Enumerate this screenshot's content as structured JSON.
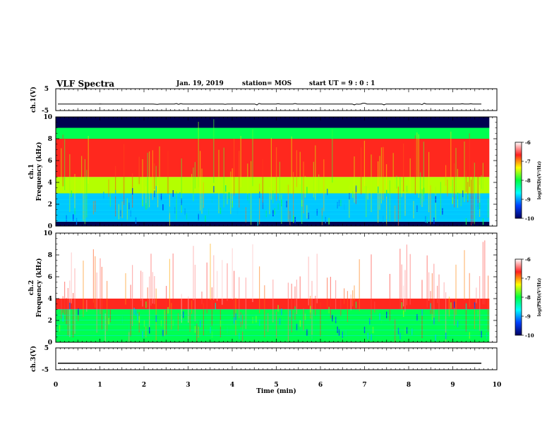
{
  "header": {
    "title": "VLF Spectra",
    "date": "Jan. 19, 2019",
    "station": "station= MOS",
    "start": "start UT =  9 : 0  : 1"
  },
  "panels": {
    "ch1_wave": {
      "ylabel": "ch.1(V)",
      "yticks": [
        "5",
        "-5"
      ]
    },
    "ch1_spec": {
      "ylabel_top": "ch.1",
      "ylabel": "Frequency (kHz)",
      "yticks": [
        "0",
        "2",
        "4",
        "6",
        "8",
        "10"
      ]
    },
    "ch2_spec": {
      "ylabel_top": "ch.2",
      "ylabel": "Frequency (kHz)",
      "yticks": [
        "0",
        "2",
        "4",
        "6",
        "8",
        "10"
      ]
    },
    "ch3_wave": {
      "ylabel": "ch.3(V)",
      "yticks": [
        "5",
        "-5"
      ]
    }
  },
  "colorbar": {
    "label": "log(PSD)(V²/Hz)",
    "ticks": [
      "-6",
      "-7",
      "-8",
      "-9",
      "-10"
    ],
    "colors": [
      "#ffffff",
      "#ff2020",
      "#ffff00",
      "#00ff40",
      "#00ffff",
      "#0040ff",
      "#000060"
    ]
  },
  "chart_data": {
    "type": "heatmap",
    "title": "VLF Spectra",
    "xlabel": "Time (min)",
    "xlim": [
      0,
      10
    ],
    "xticks": [
      "0",
      "1",
      "2",
      "3",
      "4",
      "5",
      "6",
      "7",
      "8",
      "9",
      "10"
    ],
    "data_end_min": 9.83,
    "series": [
      {
        "name": "ch.1(V)",
        "kind": "waveform",
        "ylim": [
          -5,
          5
        ],
        "level": -2
      },
      {
        "name": "ch.1",
        "kind": "spectrogram",
        "ylim": [
          0,
          10
        ],
        "bands_khz": [
          {
            "from": 0,
            "to": 0.4,
            "log_psd": -10
          },
          {
            "from": 0.4,
            "to": 3,
            "log_psd": -9
          },
          {
            "from": 3,
            "to": 4.5,
            "log_psd": -8
          },
          {
            "from": 4.5,
            "to": 8,
            "log_psd": -7
          },
          {
            "from": 8,
            "to": 9,
            "log_psd": -8.5
          },
          {
            "from": 9,
            "to": 10,
            "log_psd": -10
          }
        ]
      },
      {
        "name": "ch.2",
        "kind": "spectrogram",
        "ylim": [
          0,
          10
        ],
        "bands_khz": [
          {
            "from": 0,
            "to": 3,
            "log_psd": -8.5
          },
          {
            "from": 3,
            "to": 4,
            "log_psd": -7
          },
          {
            "from": 4,
            "to": 10,
            "log_psd": -6
          }
        ]
      },
      {
        "name": "ch.3(V)",
        "kind": "waveform",
        "ylim": [
          -5,
          5
        ],
        "level": -2
      }
    ]
  }
}
